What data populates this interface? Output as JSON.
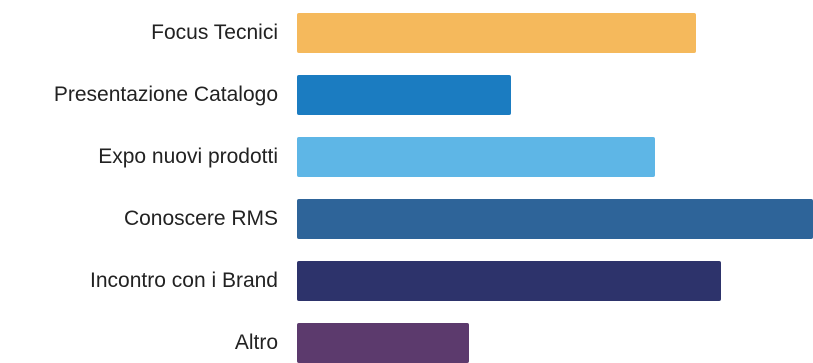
{
  "chart_data": {
    "type": "bar",
    "orientation": "horizontal",
    "categories": [
      "Focus Tecnici",
      "Presentazione Catalogo",
      "Expo nuovi prodotti",
      "Conoscere RMS",
      "Incontro con i Brand",
      "Altro"
    ],
    "values": [
      72,
      38.5,
      64.5,
      93,
      76.5,
      31
    ],
    "colors": [
      "#F5B95C",
      "#1B7CC1",
      "#5EB6E6",
      "#2E6499",
      "#2D336B",
      "#5C3A6D"
    ],
    "title": "",
    "xlabel": "",
    "ylabel": "",
    "xlim": [
      0,
      93
    ],
    "grid": false,
    "legend": "none"
  }
}
